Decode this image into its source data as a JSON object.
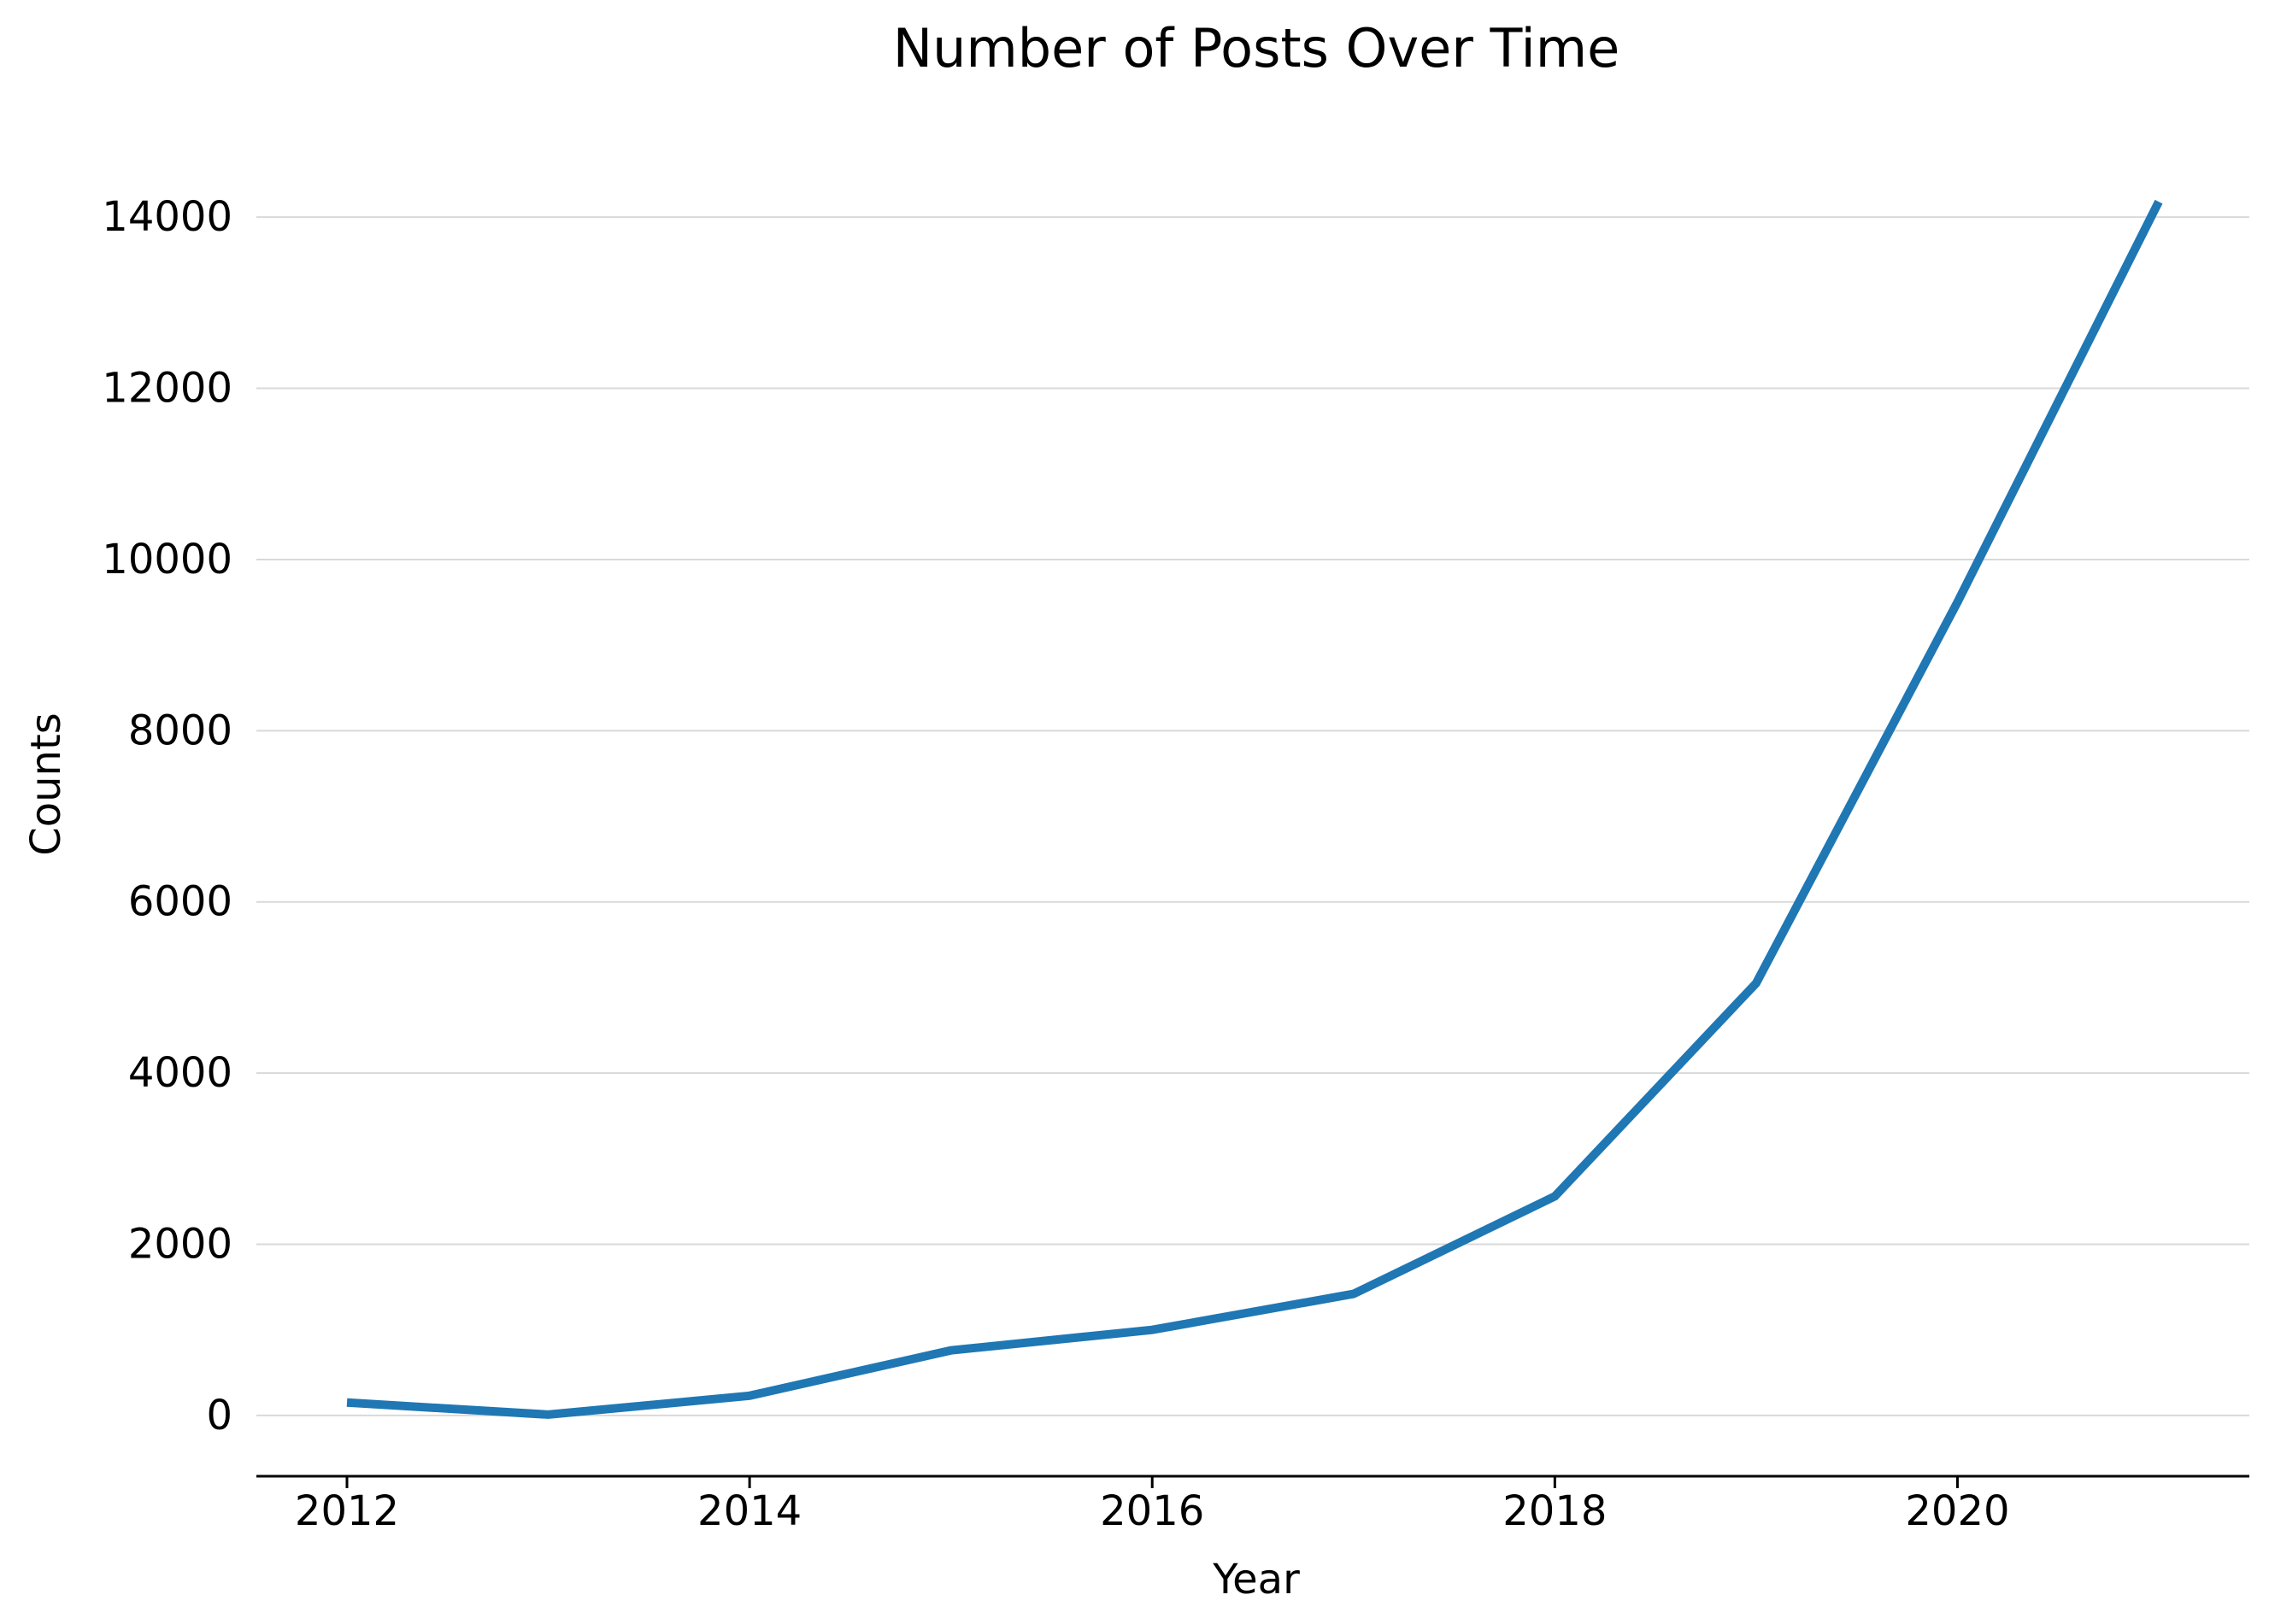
{
  "chart_data": {
    "type": "line",
    "title": "Number of Posts Over Time",
    "xlabel": "Year",
    "ylabel": "Counts",
    "x": [
      2012,
      2013,
      2014,
      2015,
      2016,
      2017,
      2018,
      2019,
      2020,
      2021
    ],
    "series": [
      {
        "values": [
          150,
          10,
          230,
          760,
          1000,
          1420,
          2560,
          5050,
          9500,
          14180
        ],
        "color": "#1f77b4"
      }
    ],
    "xticks": [
      "2012",
      "2014",
      "2016",
      "2018",
      "2020"
    ],
    "yticks": [
      "0",
      "2000",
      "4000",
      "6000",
      "8000",
      "10000",
      "12000",
      "14000"
    ],
    "xlim": [
      2011.55,
      2021.45
    ],
    "ylim": [
      -710,
      14890
    ],
    "grid": "horizontal",
    "legend": "none"
  }
}
